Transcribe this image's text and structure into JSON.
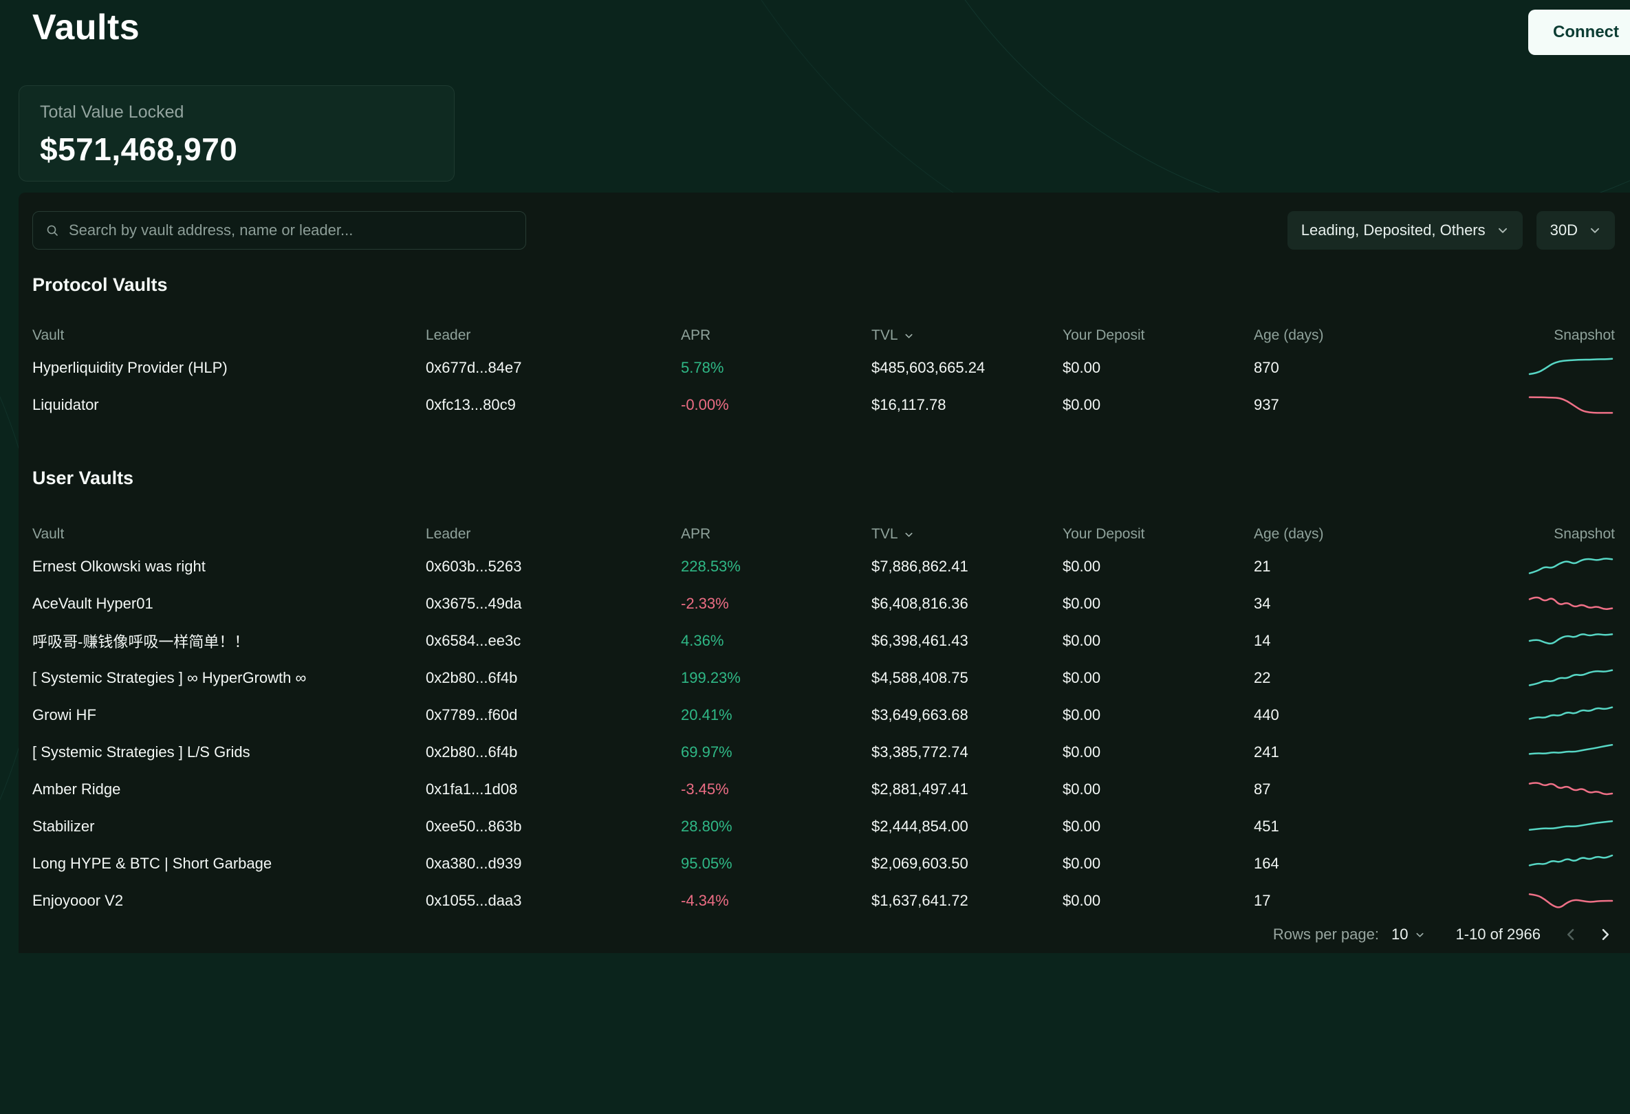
{
  "page": {
    "title": "Vaults",
    "connect_label": "Connect"
  },
  "tvl_card": {
    "label": "Total Value Locked",
    "value": "$571,468,970"
  },
  "toolbar": {
    "search_placeholder": "Search by vault address, name or leader...",
    "filter_label": "Leading, Deposited, Others",
    "period_label": "30D"
  },
  "columns": [
    "Vault",
    "Leader",
    "APR",
    "TVL",
    "Your Deposit",
    "Age (days)",
    "Snapshot"
  ],
  "colors": {
    "positive": "#2fb886",
    "negative": "#ec6d84",
    "spark_up": "#57d7c5",
    "spark_down": "#ef7087"
  },
  "protocol_vaults": {
    "title": "Protocol Vaults",
    "rows": [
      {
        "name": "Hyperliquidity Provider (HLP)",
        "leader": "0x677d...84e7",
        "apr": "5.78%",
        "tvl": "$485,603,665.24",
        "deposit": "$0.00",
        "age": "870",
        "spark": [
          80,
          75,
          55,
          30,
          18,
          14,
          12,
          10,
          10,
          8,
          8,
          6
        ]
      },
      {
        "name": "Liquidator",
        "leader": "0xfc13...80c9",
        "apr": "-0.00%",
        "tvl": "$16,117.78",
        "deposit": "$0.00",
        "age": "937",
        "spark": [
          12,
          12,
          13,
          14,
          16,
          30,
          55,
          78,
          86,
          88,
          88,
          88
        ]
      }
    ]
  },
  "user_vaults": {
    "title": "User Vaults",
    "rows": [
      {
        "name": "Ernest Olkowski was right",
        "leader": "0x603b...5263",
        "apr": "228.53%",
        "tvl": "$7,886,862.41",
        "deposit": "$0.00",
        "age": "21",
        "spark": [
          82,
          72,
          50,
          58,
          34,
          22,
          38,
          16,
          12,
          20,
          10,
          14
        ]
      },
      {
        "name": "AceVault Hyper01",
        "leader": "0x3675...49da",
        "apr": "-2.33%",
        "tvl": "$6,408,816.36",
        "deposit": "$0.00",
        "age": "34",
        "spark": [
          28,
          12,
          40,
          18,
          58,
          42,
          68,
          52,
          72,
          62,
          78,
          72
        ]
      },
      {
        "name": "呼吸哥-赚钱像呼吸一样简单！！",
        "leader": "0x6584...ee3c",
        "apr": "4.36%",
        "tvl": "$6,398,461.43",
        "deposit": "$0.00",
        "age": "14",
        "spark": [
          50,
          42,
          58,
          66,
          38,
          24,
          34,
          14,
          26,
          16,
          22,
          18
        ]
      },
      {
        "name": "[ Systemic Strategies ] ∞ HyperGrowth ∞",
        "leader": "0x2b80...6f4b",
        "apr": "199.23%",
        "tvl": "$4,588,408.75",
        "deposit": "$0.00",
        "age": "22",
        "spark": [
          85,
          78,
          62,
          68,
          48,
          52,
          32,
          38,
          22,
          16,
          20,
          12
        ]
      },
      {
        "name": "Growi HF",
        "leader": "0x7789...f60d",
        "apr": "20.41%",
        "tvl": "$3,649,663.68",
        "deposit": "$0.00",
        "age": "440",
        "spark": [
          68,
          58,
          64,
          48,
          54,
          34,
          44,
          24,
          32,
          14,
          22,
          12
        ]
      },
      {
        "name": "[ Systemic Strategies ] L/S Grids",
        "leader": "0x2b80...6f4b",
        "apr": "69.97%",
        "tvl": "$3,385,772.74",
        "deposit": "$0.00",
        "age": "241",
        "spark": [
          58,
          54,
          57,
          50,
          53,
          46,
          48,
          40,
          34,
          28,
          20,
          14
        ]
      },
      {
        "name": "Amber Ridge",
        "leader": "0x1fa1...1d08",
        "apr": "-3.45%",
        "tvl": "$2,881,497.41",
        "deposit": "$0.00",
        "age": "87",
        "spark": [
          22,
          14,
          34,
          18,
          48,
          32,
          58,
          44,
          68,
          58,
          75,
          70
        ]
      },
      {
        "name": "Stabilizer",
        "leader": "0xee50...863b",
        "apr": "28.80%",
        "tvl": "$2,444,854.00",
        "deposit": "$0.00",
        "age": "451",
        "spark": [
          66,
          62,
          58,
          60,
          54,
          48,
          50,
          44,
          38,
          32,
          28,
          24
        ]
      },
      {
        "name": "Long HYPE & BTC | Short Garbage",
        "leader": "0xa380...d939",
        "apr": "95.05%",
        "tvl": "$2,069,603.50",
        "deposit": "$0.00",
        "age": "164",
        "spark": [
          58,
          48,
          54,
          34,
          44,
          24,
          40,
          18,
          30,
          14,
          24,
          10
        ]
      },
      {
        "name": "Enjoyooor V2",
        "leader": "0x1055...daa3",
        "apr": "-4.34%",
        "tvl": "$1,637,641.72",
        "deposit": "$0.00",
        "age": "17",
        "spark": [
          18,
          22,
          42,
          72,
          86,
          58,
          44,
          50,
          56,
          52,
          50,
          50
        ]
      }
    ]
  },
  "pagination": {
    "rows_per_page_label": "Rows per page:",
    "rows_per_page": "10",
    "range": "1-10 of 2966"
  }
}
